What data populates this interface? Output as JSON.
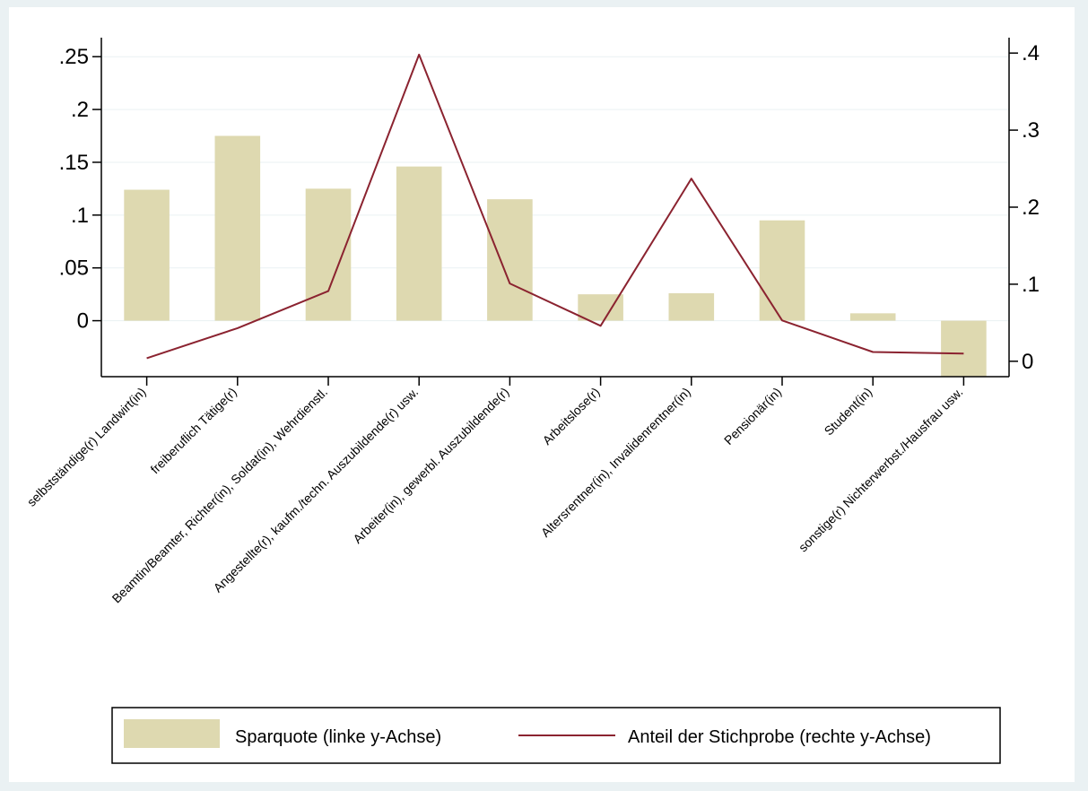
{
  "chart_data": {
    "type": "bar",
    "categories": [
      "selbstständige(r) Landwirt(in)",
      "freiberuflich Tätige(r)",
      "Beamtin/Beamter, Richter(in), Soldat(in), Wehrdienstl.",
      "Angestellte(r), kaufm./techn. Auszubildende(r) usw.",
      "Arbeiter(in), gewerbl. Auszubildende(r)",
      "Arbeitslose(r)",
      "Altersrentner(in), Invalidenrentner(in)",
      "Pensionär(in)",
      "Student(in)",
      "sonstige(r) Nichterwerbst./Hausfrau usw."
    ],
    "series": [
      {
        "name": "Sparquote (linke y-Achse)",
        "type": "bar",
        "axis": "left",
        "color": "#ded9b0",
        "values": [
          0.124,
          0.175,
          0.125,
          0.146,
          0.115,
          0.025,
          0.026,
          0.095,
          0.007,
          -0.053
        ]
      },
      {
        "name": "Anteil der Stichprobe (rechte y-Achse)",
        "type": "line",
        "axis": "right",
        "color": "#8b2330",
        "values": [
          0.004,
          0.043,
          0.091,
          0.398,
          0.101,
          0.046,
          0.237,
          0.053,
          0.012,
          0.01
        ]
      }
    ],
    "left_axis": {
      "ylim": [
        -0.053,
        0.268
      ],
      "ticks": [
        0.25,
        0.2,
        0.15,
        0.1,
        0.05,
        0
      ],
      "tick_labels": [
        ".25",
        ".2",
        ".15",
        ".1",
        ".05",
        "0"
      ]
    },
    "right_axis": {
      "ylim": [
        -0.02,
        0.42
      ],
      "ticks": [
        0.4,
        0.3,
        0.2,
        0.1,
        0
      ],
      "tick_labels": [
        ".4",
        ".3",
        ".2",
        ".1",
        "0"
      ]
    },
    "grid": true,
    "legend_position": "bottom",
    "colors": {
      "outer_background": "#eaf1f3",
      "plot_background": "#ffffff",
      "grid": "#eaf1f3",
      "bar": "#ded9b0",
      "line": "#8b2330"
    }
  }
}
